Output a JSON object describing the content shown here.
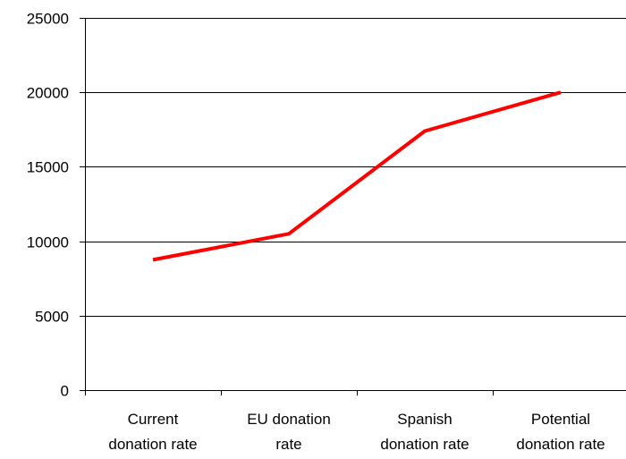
{
  "chart_data": {
    "type": "line",
    "categories": [
      [
        "Current",
        "donation rate"
      ],
      [
        "EU donation",
        "rate"
      ],
      [
        "Spanish",
        "donation rate"
      ],
      [
        "Potential",
        "donation rate"
      ]
    ],
    "series": [
      {
        "values": [
          8750,
          10500,
          17400,
          20000
        ],
        "color": "#ff0000"
      }
    ],
    "ylim": [
      0,
      25000
    ],
    "yticks": [
      0,
      5000,
      10000,
      15000,
      20000,
      25000
    ],
    "grid": "horizontal",
    "legend": "none",
    "colors": {
      "line": "#ff0000",
      "axis": "#000000",
      "grid": "#000000",
      "background": "#ffffff"
    }
  }
}
